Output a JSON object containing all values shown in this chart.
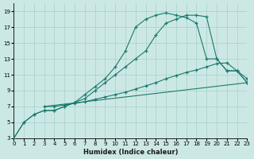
{
  "xlabel": "Humidex (Indice chaleur)",
  "bg_color": "#cce8e5",
  "grid_color": "#aad4d0",
  "line_color": "#1a7a6e",
  "xlim": [
    0,
    23
  ],
  "ylim": [
    3,
    20
  ],
  "xticks": [
    0,
    1,
    2,
    3,
    4,
    5,
    6,
    7,
    8,
    9,
    10,
    11,
    12,
    13,
    14,
    15,
    16,
    17,
    18,
    19,
    20,
    21,
    22,
    23
  ],
  "yticks": [
    3,
    5,
    7,
    9,
    11,
    13,
    15,
    17,
    19
  ],
  "series": [
    {
      "x": [
        0,
        1,
        2,
        3,
        4,
        5,
        6,
        7,
        8,
        9,
        10,
        11,
        12,
        13,
        14,
        15,
        16,
        17,
        18,
        19,
        20,
        21,
        22,
        23
      ],
      "y": [
        3,
        5,
        6,
        6.5,
        6.5,
        7,
        7.5,
        8.5,
        9.5,
        10.5,
        12,
        14,
        17,
        18,
        18.5,
        18.8,
        18.5,
        18.2,
        17.5,
        13,
        13,
        11.5,
        11.5,
        10
      ],
      "marker": true
    },
    {
      "x": [
        0,
        1,
        2,
        3,
        4,
        5,
        6,
        7,
        8,
        9,
        10,
        11,
        12,
        13,
        14,
        15,
        16,
        17,
        18,
        19,
        20,
        21,
        22,
        23
      ],
      "y": [
        3,
        5,
        6,
        6.5,
        6.5,
        7,
        7.5,
        8,
        9,
        10,
        11,
        12,
        13,
        14,
        16,
        17.5,
        18,
        18.5,
        18.5,
        18.3,
        13,
        11.5,
        11.5,
        10
      ],
      "marker": true
    },
    {
      "x": [
        3,
        4,
        5,
        6,
        7,
        8,
        9,
        10,
        11,
        12,
        13,
        14,
        15,
        16,
        17,
        18,
        19,
        20,
        21,
        22,
        23
      ],
      "y": [
        7,
        7,
        7.2,
        7.4,
        7.6,
        7.9,
        8.2,
        8.5,
        8.8,
        9.2,
        9.6,
        10,
        10.5,
        10.9,
        11.3,
        11.6,
        12,
        12.4,
        12.5,
        11.5,
        10.5
      ],
      "marker": true
    },
    {
      "x": [
        3,
        23
      ],
      "y": [
        7,
        10
      ],
      "marker": false
    }
  ]
}
